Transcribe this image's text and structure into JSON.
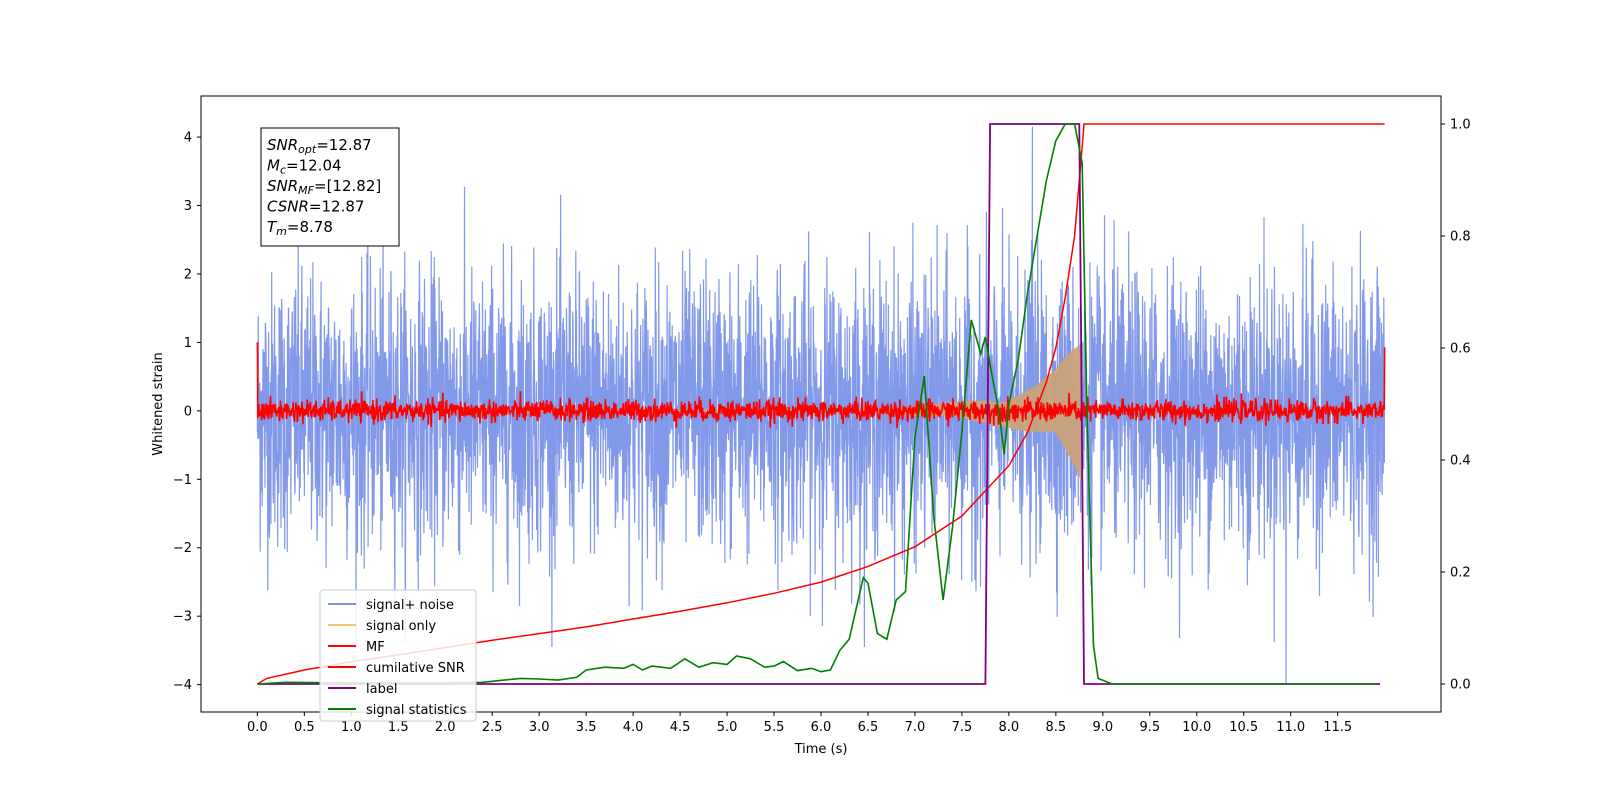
{
  "chart_data": {
    "type": "line",
    "xlabel": "Time (s)",
    "ylabel": "Whitened strain",
    "xlim": [
      -0.6,
      12.6
    ],
    "ylim": [
      -4.4,
      4.6
    ],
    "y2lim": [
      -0.05,
      1.05
    ],
    "x_ticks": [
      "0.0",
      "0.5",
      "1.0",
      "1.5",
      "2.0",
      "2.5",
      "3.0",
      "3.5",
      "4.0",
      "4.5",
      "5.0",
      "5.5",
      "6.0",
      "6.5",
      "7.0",
      "7.5",
      "8.0",
      "8.5",
      "9.0",
      "9.5",
      "10.0",
      "10.5",
      "11.0",
      "11.5"
    ],
    "y_ticks": [
      "4",
      "3",
      "2",
      "1",
      "0",
      "−1",
      "−2",
      "−3",
      "−4"
    ],
    "y2_ticks": [
      "1.0",
      "0.8",
      "0.6",
      "0.4",
      "0.2",
      "0.0"
    ],
    "annotation": {
      "lines": [
        {
          "base": "SNR",
          "sub": "opt",
          "rest": "=12.87"
        },
        {
          "base": "M",
          "sub": "c",
          "rest": "=12.04"
        },
        {
          "base": "SNR",
          "sub": "MF",
          "rest": "=[12.82]"
        },
        {
          "base": "CSNR",
          "sub": "",
          "rest": "=12.87"
        },
        {
          "base": "T",
          "sub": "m",
          "rest": "=8.78"
        }
      ]
    },
    "legend": {
      "placement": "lower-left",
      "entries": [
        {
          "label": "signal+ noise",
          "color": "#7b93e8"
        },
        {
          "label": "signal only",
          "color": "#f5c36b"
        },
        {
          "label": "MF",
          "color": "#ff0000"
        },
        {
          "label": "cumilative SNR",
          "color": "#ff0000"
        },
        {
          "label": "label",
          "color": "#800080"
        },
        {
          "label": "signal statistics",
          "color": "#008000"
        }
      ]
    },
    "series": [
      {
        "name": "signal+ noise",
        "axis": "left",
        "color": "#7b93e8",
        "kind": "noise",
        "x_range": [
          0,
          12
        ],
        "amplitude": 1.0,
        "peak_max": 4.15,
        "peak_min": -4.0
      },
      {
        "name": "signal only",
        "axis": "left",
        "color": "#c9a27a",
        "kind": "chirp",
        "x_range": [
          0,
          8.78
        ],
        "envelope_points": [
          [
            6.0,
            0.02
          ],
          [
            6.5,
            0.04
          ],
          [
            7.0,
            0.08
          ],
          [
            7.5,
            0.14
          ],
          [
            8.0,
            0.25
          ],
          [
            8.3,
            0.4
          ],
          [
            8.5,
            0.6
          ],
          [
            8.65,
            0.9
          ],
          [
            8.75,
            1.1
          ],
          [
            8.78,
            1.2
          ]
        ]
      },
      {
        "name": "MF",
        "axis": "left",
        "color": "#ff0000",
        "kind": "mf",
        "x_range": [
          0,
          12
        ],
        "amplitude": 0.08,
        "start_value": 1.0,
        "end_value": 0.93
      },
      {
        "name": "cumilative SNR",
        "axis": "right",
        "color": "#ff0000",
        "points": [
          [
            0,
            0.0
          ],
          [
            0.1,
            0.01
          ],
          [
            0.5,
            0.025
          ],
          [
            1,
            0.04
          ],
          [
            1.5,
            0.052
          ],
          [
            2,
            0.065
          ],
          [
            2.5,
            0.078
          ],
          [
            3,
            0.09
          ],
          [
            3.5,
            0.102
          ],
          [
            4,
            0.116
          ],
          [
            4.5,
            0.13
          ],
          [
            5,
            0.145
          ],
          [
            5.5,
            0.162
          ],
          [
            6,
            0.182
          ],
          [
            6.5,
            0.21
          ],
          [
            7,
            0.245
          ],
          [
            7.5,
            0.3
          ],
          [
            8,
            0.39
          ],
          [
            8.2,
            0.45
          ],
          [
            8.4,
            0.54
          ],
          [
            8.5,
            0.6
          ],
          [
            8.6,
            0.69
          ],
          [
            8.7,
            0.8
          ],
          [
            8.78,
            0.96
          ],
          [
            8.8,
            1.0
          ],
          [
            12,
            1.0
          ]
        ]
      },
      {
        "name": "label",
        "axis": "right",
        "color": "#800080",
        "points": [
          [
            0,
            0
          ],
          [
            7.75,
            0
          ],
          [
            7.8,
            1
          ],
          [
            8.75,
            1
          ],
          [
            8.8,
            0
          ],
          [
            11.95,
            0
          ]
        ]
      },
      {
        "name": "signal statistics",
        "axis": "right",
        "color": "#008000",
        "points": [
          [
            0,
            0.0
          ],
          [
            0.3,
            0.003
          ],
          [
            1,
            0.002
          ],
          [
            2,
            0.002
          ],
          [
            2.4,
            0.003
          ],
          [
            2.8,
            0.01
          ],
          [
            3,
            0.009
          ],
          [
            3.2,
            0.007
          ],
          [
            3.4,
            0.012
          ],
          [
            3.5,
            0.025
          ],
          [
            3.7,
            0.03
          ],
          [
            3.9,
            0.028
          ],
          [
            4.0,
            0.035
          ],
          [
            4.1,
            0.025
          ],
          [
            4.2,
            0.032
          ],
          [
            4.4,
            0.028
          ],
          [
            4.55,
            0.045
          ],
          [
            4.7,
            0.03
          ],
          [
            4.85,
            0.038
          ],
          [
            5.0,
            0.035
          ],
          [
            5.1,
            0.05
          ],
          [
            5.25,
            0.045
          ],
          [
            5.4,
            0.03
          ],
          [
            5.5,
            0.032
          ],
          [
            5.6,
            0.04
          ],
          [
            5.75,
            0.024
          ],
          [
            5.9,
            0.028
          ],
          [
            6.0,
            0.022
          ],
          [
            6.1,
            0.025
          ],
          [
            6.2,
            0.06
          ],
          [
            6.3,
            0.08
          ],
          [
            6.45,
            0.19
          ],
          [
            6.5,
            0.18
          ],
          [
            6.6,
            0.09
          ],
          [
            6.7,
            0.08
          ],
          [
            6.8,
            0.15
          ],
          [
            6.9,
            0.165
          ],
          [
            7.0,
            0.44
          ],
          [
            7.1,
            0.55
          ],
          [
            7.2,
            0.3
          ],
          [
            7.3,
            0.15
          ],
          [
            7.4,
            0.28
          ],
          [
            7.5,
            0.45
          ],
          [
            7.6,
            0.65
          ],
          [
            7.7,
            0.59
          ],
          [
            7.75,
            0.62
          ],
          [
            7.8,
            0.57
          ],
          [
            7.9,
            0.48
          ],
          [
            7.95,
            0.41
          ],
          [
            8.0,
            0.5
          ],
          [
            8.1,
            0.58
          ],
          [
            8.2,
            0.7
          ],
          [
            8.3,
            0.8
          ],
          [
            8.4,
            0.9
          ],
          [
            8.5,
            0.97
          ],
          [
            8.6,
            1.0
          ],
          [
            8.7,
            1.0
          ],
          [
            8.78,
            0.93
          ],
          [
            8.83,
            0.5
          ],
          [
            8.9,
            0.07
          ],
          [
            8.95,
            0.01
          ],
          [
            9.1,
            0.0
          ],
          [
            11.9,
            0.0
          ]
        ]
      }
    ]
  }
}
